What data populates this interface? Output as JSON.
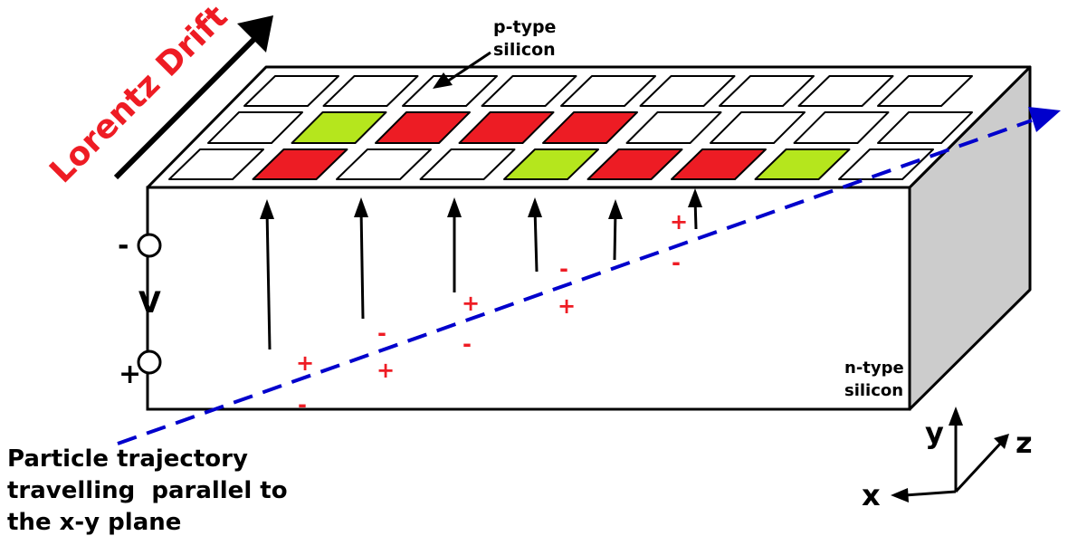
{
  "labels": {
    "lorentz_drift": "Lorentz Drift",
    "p_type_line1": "p-type",
    "p_type_line2": "silicon",
    "n_type_line1": "n-type",
    "n_type_line2": "silicon",
    "voltage": "V",
    "minus_terminal": "-",
    "plus_terminal": "+",
    "trajectory_line1": "Particle trajectory",
    "trajectory_line2": "travelling  parallel to",
    "trajectory_line3": "the x-y plane",
    "axis_x": "x",
    "axis_y": "y",
    "axis_z": "z"
  },
  "pixel_grid": {
    "rows": [
      [
        "white",
        "white",
        "white",
        "white",
        "white",
        "white",
        "white",
        "white",
        "white"
      ],
      [
        "white",
        "green",
        "red",
        "red",
        "red",
        "white",
        "white",
        "white",
        "white"
      ],
      [
        "white",
        "red",
        "white",
        "white",
        "green",
        "red",
        "red",
        "green",
        "white"
      ]
    ]
  },
  "charge_signs": {
    "plus": "+",
    "minus": "-"
  },
  "colors": {
    "drift_text": "#ee1c24",
    "charge": "#ee1c24",
    "hit_red": "#ed1c24",
    "hit_green": "#b5e61d",
    "trajectory": "#0000cc",
    "side_face": "#cccccc",
    "outline": "#000000"
  }
}
